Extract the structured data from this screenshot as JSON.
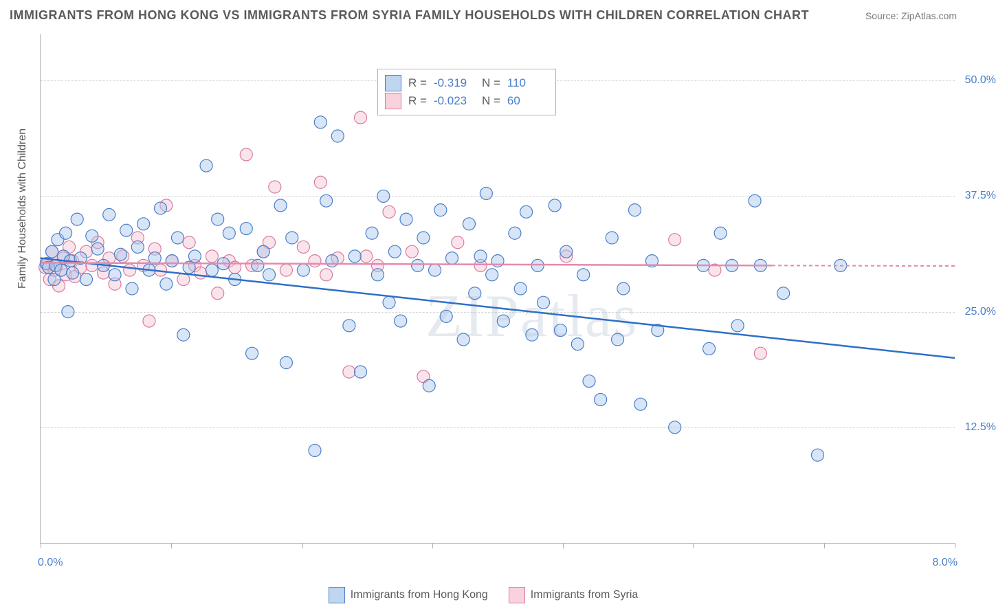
{
  "header": {
    "title": "IMMIGRANTS FROM HONG KONG VS IMMIGRANTS FROM SYRIA FAMILY HOUSEHOLDS WITH CHILDREN CORRELATION CHART",
    "source": "Source: ZipAtlas.com"
  },
  "watermark": "ZIPatlas",
  "yaxis": {
    "label": "Family Households with Children",
    "ticks": [
      {
        "value": 12.5,
        "label": "12.5%"
      },
      {
        "value": 25.0,
        "label": "25.0%"
      },
      {
        "value": 37.5,
        "label": "37.5%"
      },
      {
        "value": 50.0,
        "label": "50.0%"
      }
    ],
    "min": 0,
    "max": 55
  },
  "xaxis": {
    "min": 0,
    "max": 8.0,
    "min_label": "0.0%",
    "max_label": "8.0%",
    "tick_positions": [
      0,
      1.14,
      2.29,
      3.43,
      4.57,
      5.71,
      6.86,
      8.0
    ]
  },
  "legend_box": {
    "rows": [
      {
        "series": "blue",
        "r_label": "R =",
        "r_value": "-0.319",
        "n_label": "N =",
        "n_value": "110"
      },
      {
        "series": "pink",
        "r_label": "R =",
        "r_value": "-0.023",
        "n_label": "N =",
        "n_value": "60"
      }
    ]
  },
  "bottom_legend": {
    "items": [
      {
        "series": "blue",
        "label": "Immigrants from Hong Kong"
      },
      {
        "series": "pink",
        "label": "Immigrants from Syria"
      }
    ]
  },
  "series": {
    "blue": {
      "color_fill": "#a9c6ea",
      "color_stroke": "#4a7fc9",
      "trend_color": "#2e6fc9",
      "marker_radius": 9,
      "trend": {
        "y_at_xmin": 30.8,
        "y_at_xmax": 20.0,
        "x_extent": 8.0
      },
      "points": [
        [
          0.05,
          30.2
        ],
        [
          0.07,
          29.8
        ],
        [
          0.1,
          31.5
        ],
        [
          0.12,
          28.5
        ],
        [
          0.13,
          30.0
        ],
        [
          0.15,
          32.8
        ],
        [
          0.18,
          29.5
        ],
        [
          0.2,
          31.0
        ],
        [
          0.22,
          33.5
        ],
        [
          0.24,
          25.0
        ],
        [
          0.26,
          30.5
        ],
        [
          0.28,
          29.2
        ],
        [
          0.32,
          35.0
        ],
        [
          0.35,
          30.8
        ],
        [
          0.4,
          28.5
        ],
        [
          0.45,
          33.2
        ],
        [
          0.5,
          31.8
        ],
        [
          0.55,
          30.0
        ],
        [
          0.6,
          35.5
        ],
        [
          0.65,
          29.0
        ],
        [
          0.7,
          31.2
        ],
        [
          0.75,
          33.8
        ],
        [
          0.8,
          27.5
        ],
        [
          0.85,
          32.0
        ],
        [
          0.9,
          34.5
        ],
        [
          0.95,
          29.5
        ],
        [
          1.0,
          30.8
        ],
        [
          1.05,
          36.2
        ],
        [
          1.1,
          28.0
        ],
        [
          1.15,
          30.5
        ],
        [
          1.2,
          33.0
        ],
        [
          1.25,
          22.5
        ],
        [
          1.3,
          29.8
        ],
        [
          1.35,
          31.0
        ],
        [
          1.45,
          40.8
        ],
        [
          1.5,
          29.5
        ],
        [
          1.55,
          35.0
        ],
        [
          1.6,
          30.2
        ],
        [
          1.65,
          33.5
        ],
        [
          1.7,
          28.5
        ],
        [
          1.8,
          34.0
        ],
        [
          1.85,
          20.5
        ],
        [
          1.9,
          30.0
        ],
        [
          1.95,
          31.5
        ],
        [
          2.0,
          29.0
        ],
        [
          2.1,
          36.5
        ],
        [
          2.15,
          19.5
        ],
        [
          2.2,
          33.0
        ],
        [
          2.3,
          29.5
        ],
        [
          2.4,
          10.0
        ],
        [
          2.45,
          45.5
        ],
        [
          2.5,
          37.0
        ],
        [
          2.55,
          30.5
        ],
        [
          2.6,
          44.0
        ],
        [
          2.7,
          23.5
        ],
        [
          2.75,
          31.0
        ],
        [
          2.8,
          18.5
        ],
        [
          2.9,
          33.5
        ],
        [
          2.95,
          29.0
        ],
        [
          3.0,
          37.5
        ],
        [
          3.05,
          26.0
        ],
        [
          3.1,
          31.5
        ],
        [
          3.15,
          24.0
        ],
        [
          3.2,
          35.0
        ],
        [
          3.3,
          30.0
        ],
        [
          3.35,
          33.0
        ],
        [
          3.4,
          17.0
        ],
        [
          3.45,
          29.5
        ],
        [
          3.5,
          36.0
        ],
        [
          3.55,
          24.5
        ],
        [
          3.6,
          30.8
        ],
        [
          3.7,
          22.0
        ],
        [
          3.75,
          34.5
        ],
        [
          3.8,
          27.0
        ],
        [
          3.85,
          31.0
        ],
        [
          3.9,
          37.8
        ],
        [
          3.95,
          29.0
        ],
        [
          4.0,
          30.5
        ],
        [
          4.05,
          24.0
        ],
        [
          4.15,
          33.5
        ],
        [
          4.2,
          27.5
        ],
        [
          4.25,
          35.8
        ],
        [
          4.3,
          22.5
        ],
        [
          4.35,
          30.0
        ],
        [
          4.4,
          26.0
        ],
        [
          4.5,
          36.5
        ],
        [
          4.55,
          23.0
        ],
        [
          4.6,
          31.5
        ],
        [
          4.7,
          21.5
        ],
        [
          4.75,
          29.0
        ],
        [
          4.8,
          17.5
        ],
        [
          4.9,
          15.5
        ],
        [
          5.0,
          33.0
        ],
        [
          5.05,
          22.0
        ],
        [
          5.1,
          27.5
        ],
        [
          5.2,
          36.0
        ],
        [
          5.25,
          15.0
        ],
        [
          5.35,
          30.5
        ],
        [
          5.4,
          23.0
        ],
        [
          5.55,
          12.5
        ],
        [
          5.8,
          30.0
        ],
        [
          5.85,
          21.0
        ],
        [
          5.95,
          33.5
        ],
        [
          6.05,
          30.0
        ],
        [
          6.1,
          23.5
        ],
        [
          6.25,
          37.0
        ],
        [
          6.3,
          30.0
        ],
        [
          6.5,
          27.0
        ],
        [
          6.8,
          9.5
        ],
        [
          7.0,
          30.0
        ]
      ]
    },
    "pink": {
      "color_fill": "#f5c3d2",
      "color_stroke": "#d97a9e",
      "trend_color": "#e58aac",
      "marker_radius": 9,
      "trend": {
        "y_at_xmin": 30.3,
        "y_at_xmax_solid": 30.0,
        "x_extent_solid": 6.4,
        "y_at_xmax_dash": 29.95,
        "x_extent_dash": 8.0
      },
      "points": [
        [
          0.04,
          29.8
        ],
        [
          0.06,
          30.2
        ],
        [
          0.08,
          28.5
        ],
        [
          0.1,
          31.5
        ],
        [
          0.12,
          29.5
        ],
        [
          0.14,
          30.0
        ],
        [
          0.16,
          27.8
        ],
        [
          0.2,
          30.8
        ],
        [
          0.22,
          29.0
        ],
        [
          0.25,
          32.0
        ],
        [
          0.28,
          30.5
        ],
        [
          0.3,
          28.8
        ],
        [
          0.35,
          29.8
        ],
        [
          0.4,
          31.5
        ],
        [
          0.45,
          30.0
        ],
        [
          0.5,
          32.5
        ],
        [
          0.55,
          29.2
        ],
        [
          0.6,
          30.8
        ],
        [
          0.65,
          28.0
        ],
        [
          0.72,
          31.0
        ],
        [
          0.78,
          29.5
        ],
        [
          0.85,
          33.0
        ],
        [
          0.9,
          30.0
        ],
        [
          0.95,
          24.0
        ],
        [
          1.0,
          31.8
        ],
        [
          1.05,
          29.5
        ],
        [
          1.1,
          36.5
        ],
        [
          1.15,
          30.5
        ],
        [
          1.25,
          28.5
        ],
        [
          1.3,
          32.5
        ],
        [
          1.35,
          30.0
        ],
        [
          1.4,
          29.2
        ],
        [
          1.5,
          31.0
        ],
        [
          1.55,
          27.0
        ],
        [
          1.65,
          30.5
        ],
        [
          1.7,
          29.8
        ],
        [
          1.8,
          42.0
        ],
        [
          1.85,
          30.0
        ],
        [
          1.95,
          31.5
        ],
        [
          2.0,
          32.5
        ],
        [
          2.05,
          38.5
        ],
        [
          2.15,
          29.5
        ],
        [
          2.3,
          32.0
        ],
        [
          2.4,
          30.5
        ],
        [
          2.45,
          39.0
        ],
        [
          2.5,
          29.0
        ],
        [
          2.6,
          30.8
        ],
        [
          2.7,
          18.5
        ],
        [
          2.8,
          46.0
        ],
        [
          2.85,
          31.0
        ],
        [
          2.95,
          30.0
        ],
        [
          3.05,
          35.8
        ],
        [
          3.25,
          31.5
        ],
        [
          3.35,
          18.0
        ],
        [
          3.65,
          32.5
        ],
        [
          3.85,
          30.0
        ],
        [
          4.6,
          31.0
        ],
        [
          5.55,
          32.8
        ],
        [
          5.9,
          29.5
        ],
        [
          6.3,
          20.5
        ]
      ]
    }
  }
}
